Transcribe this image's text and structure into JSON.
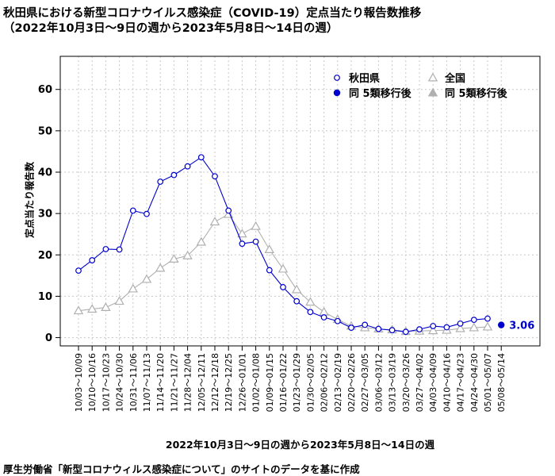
{
  "title": {
    "line1": "秋田県における新型コロナウイルス感染症（COVID-19）定点当たり報告数推移",
    "line2": "（2022年10月3日～9日の週から2023年5月8日～14日の週）"
  },
  "source_note": "厚生労働省「新型コロナウィルス感染症について」のサイトのデータを基に作成",
  "chart_data": {
    "type": "line",
    "xlabel": "2022年10月3日～9日の週から2023年5月8日～14日の週",
    "ylabel": "定点当たり報告数",
    "ylim": [
      -2,
      68
    ],
    "yticks": [
      0,
      10,
      20,
      30,
      40,
      50,
      60
    ],
    "grid": true,
    "legend_position": "top-right",
    "categories": [
      "10/03～10/09",
      "10/10～10/16",
      "10/17～10/23",
      "10/24～10/30",
      "10/31～11/06",
      "11/07～11/13",
      "11/14～11/20",
      "11/21～11/27",
      "11/28～12/04",
      "12/05～12/11",
      "12/12～12/18",
      "12/19～12/25",
      "12/26～01/01",
      "01/02～01/08",
      "01/09～01/15",
      "01/16～01/22",
      "01/23～01/29",
      "01/30～02/05",
      "02/06～02/12",
      "02/13～02/19",
      "02/20～02/26",
      "02/27～03/05",
      "03/06～03/12",
      "03/13～03/19",
      "03/20～03/26",
      "03/27～04/02",
      "04/03～04/09",
      "04/10～04/16",
      "04/17～04/23",
      "04/24～04/30",
      "05/01～05/07",
      "05/08～05/14"
    ],
    "series": [
      {
        "name": "秋田県",
        "color": "#0000cd",
        "marker": "open-circle",
        "values": [
          16.2,
          18.7,
          21.4,
          21.3,
          30.7,
          29.9,
          37.7,
          39.3,
          41.4,
          43.6,
          39.0,
          30.7,
          22.7,
          23.2,
          16.3,
          12.2,
          8.8,
          6.2,
          4.9,
          4.0,
          2.4,
          3.1,
          2.1,
          1.8,
          1.4,
          2.0,
          2.8,
          2.5,
          3.4,
          4.3,
          4.6,
          null
        ]
      },
      {
        "name": "全国",
        "color": "#b0b0b0",
        "marker": "open-triangle",
        "values": [
          6.5,
          6.9,
          7.3,
          8.8,
          11.8,
          14.1,
          16.8,
          19.0,
          19.8,
          23.1,
          28.0,
          29.8,
          25.1,
          26.9,
          21.3,
          16.6,
          11.6,
          8.6,
          6.2,
          4.4,
          2.8,
          2.4,
          2.1,
          1.9,
          1.5,
          1.6,
          1.7,
          1.8,
          2.2,
          2.4,
          2.6,
          null
        ]
      },
      {
        "name": "同 5類移行後",
        "color": "#0000cd",
        "marker": "filled-circle",
        "values": [
          null,
          null,
          null,
          null,
          null,
          null,
          null,
          null,
          null,
          null,
          null,
          null,
          null,
          null,
          null,
          null,
          null,
          null,
          null,
          null,
          null,
          null,
          null,
          null,
          null,
          null,
          null,
          null,
          null,
          null,
          null,
          3.06
        ]
      },
      {
        "name": "同 5類移行後",
        "color": "#b0b0b0",
        "marker": "filled-triangle",
        "values": [
          null,
          null,
          null,
          null,
          null,
          null,
          null,
          null,
          null,
          null,
          null,
          null,
          null,
          null,
          null,
          null,
          null,
          null,
          null,
          null,
          null,
          null,
          null,
          null,
          null,
          null,
          null,
          null,
          null,
          null,
          null,
          null
        ]
      }
    ],
    "annotations": [
      {
        "label": "3.06",
        "category": "05/08～05/14",
        "value": 3.06,
        "color": "#0000cd"
      }
    ]
  }
}
